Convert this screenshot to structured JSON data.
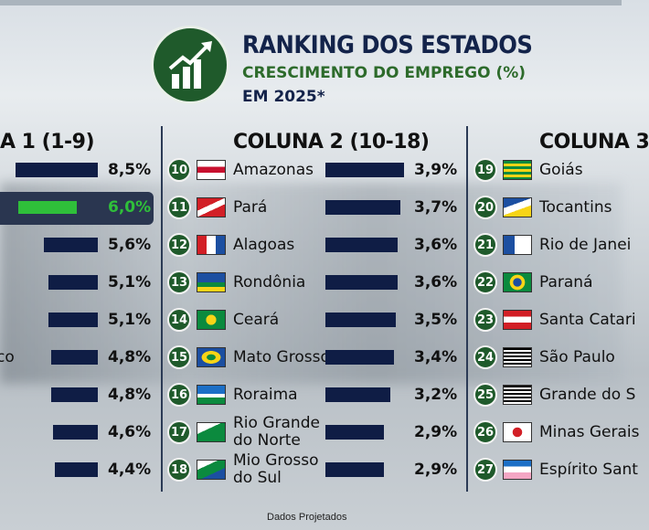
{
  "header": {
    "title": "RANKING DOS ESTADOS",
    "subtitle": "CRESCIMENTO DO EMPREGO (%)",
    "year": "EM 2025*"
  },
  "columns": {
    "col1": "A 1 (1-9)",
    "col2": "COLUNA 2 (10-18)",
    "col3": "COLUNA 3"
  },
  "footer": "Dados Projetados",
  "colors": {
    "bar": "#0f1d45",
    "highlight_bar": "#2fbf3a",
    "highlight_value": "#2fbf3a",
    "badge": "#1f5a2b"
  },
  "chart_data": {
    "type": "bar",
    "columns": [
      {
        "rows": [
          {
            "rank": "",
            "state": "",
            "value": 8.5,
            "value_label": "8,5%"
          },
          {
            "rank": "",
            "state": "",
            "value": 6.0,
            "value_label": "6,0%",
            "highlight": true
          },
          {
            "rank": "",
            "state": "",
            "value": 5.6,
            "value_label": "5,6%"
          },
          {
            "rank": "",
            "state": "",
            "value": 5.1,
            "value_label": "5,1%"
          },
          {
            "rank": "",
            "state": "",
            "value": 5.1,
            "value_label": "5,1%"
          },
          {
            "rank": "",
            "state": "co",
            "value": 4.8,
            "value_label": "4,8%"
          },
          {
            "rank": "",
            "state": "",
            "value": 4.8,
            "value_label": "4,8%"
          },
          {
            "rank": "",
            "state": "",
            "value": 4.6,
            "value_label": "4,6%"
          },
          {
            "rank": "",
            "state": "",
            "value": 4.4,
            "value_label": "4,4%"
          }
        ]
      },
      {
        "rows": [
          {
            "rank": "10",
            "state": "Amazonas",
            "value": 3.9,
            "value_label": "3,9%",
            "flag": "amazonas"
          },
          {
            "rank": "11",
            "state": "Pará",
            "value": 3.7,
            "value_label": "3,7%",
            "flag": "para"
          },
          {
            "rank": "12",
            "state": "Alagoas",
            "value": 3.6,
            "value_label": "3,6%",
            "flag": "alagoas"
          },
          {
            "rank": "13",
            "state": "Rondônia",
            "value": 3.6,
            "value_label": "3,6%",
            "flag": "rondonia"
          },
          {
            "rank": "14",
            "state": "Ceará",
            "value": 3.5,
            "value_label": "3,5%",
            "flag": "ceara"
          },
          {
            "rank": "15",
            "state": "Mato Grosso",
            "value": 3.4,
            "value_label": "3,4%",
            "flag": "mato-grosso"
          },
          {
            "rank": "16",
            "state": "Roraima",
            "value": 3.2,
            "value_label": "3,2%",
            "flag": "roraima"
          },
          {
            "rank": "17",
            "state": "Rio Grande do Norte",
            "state_lines": [
              "Rio Grande",
              "do Norte"
            ],
            "value": 2.9,
            "value_label": "2,9%",
            "flag": "rio-grande-do-norte"
          },
          {
            "rank": "18",
            "state": "Mio Grosso do Sul",
            "state_lines": [
              "Mio Grosso",
              "do Sul"
            ],
            "value": 2.9,
            "value_label": "2,9%",
            "flag": "mato-grosso-do-sul"
          }
        ]
      },
      {
        "rows": [
          {
            "rank": "19",
            "state": "Goiás",
            "flag": "goias"
          },
          {
            "rank": "20",
            "state": "Tocantins",
            "flag": "tocantins"
          },
          {
            "rank": "21",
            "state": "Rio de Janei",
            "flag": "rio-de-janeiro"
          },
          {
            "rank": "22",
            "state": "Paraná",
            "flag": "parana"
          },
          {
            "rank": "23",
            "state": "Santa Catari",
            "flag": "santa-catarina"
          },
          {
            "rank": "24",
            "state": "São Paulo",
            "flag": "sao-paulo"
          },
          {
            "rank": "25",
            "state": "Grande do S",
            "flag": "rio-grande-do-sul"
          },
          {
            "rank": "26",
            "state": "Minas Gerais",
            "flag": "minas-gerais"
          },
          {
            "rank": "27",
            "state": "Espírito Sant",
            "flag": "espirito-santo"
          }
        ]
      }
    ]
  }
}
